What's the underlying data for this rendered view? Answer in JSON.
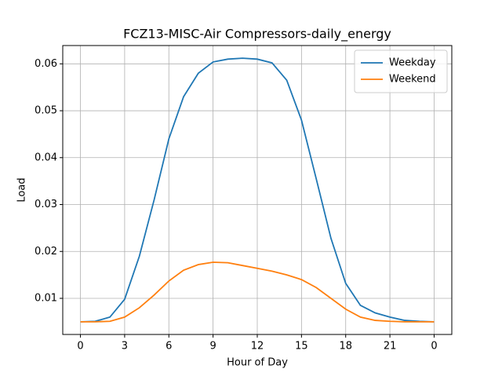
{
  "chart_data": {
    "type": "line",
    "title": "FCZ13-MISC-Air Compressors-daily_energy",
    "xlabel": "Hour of Day",
    "ylabel": "Load",
    "x": [
      0,
      1,
      2,
      3,
      4,
      5,
      6,
      7,
      8,
      9,
      10,
      11,
      12,
      13,
      14,
      15,
      16,
      17,
      18,
      19,
      20,
      21,
      22,
      23,
      24
    ],
    "series": [
      {
        "name": "Weekday",
        "color": "#1f77b4",
        "values": [
          0.005,
          0.0051,
          0.006,
          0.0098,
          0.019,
          0.031,
          0.044,
          0.053,
          0.058,
          0.0604,
          0.061,
          0.0612,
          0.061,
          0.0602,
          0.0565,
          0.048,
          0.0355,
          0.0228,
          0.0132,
          0.0085,
          0.0069,
          0.006,
          0.0053,
          0.0051,
          0.005
        ]
      },
      {
        "name": "Weekend",
        "color": "#ff7f0e",
        "values": [
          0.005,
          0.005,
          0.0051,
          0.006,
          0.008,
          0.0107,
          0.0137,
          0.016,
          0.0172,
          0.0177,
          0.0176,
          0.017,
          0.0164,
          0.0158,
          0.015,
          0.014,
          0.0123,
          0.01,
          0.0077,
          0.006,
          0.0053,
          0.0051,
          0.005,
          0.005,
          0.005
        ]
      }
    ],
    "xlim": [
      -1.2,
      25.2
    ],
    "ylim": [
      0.0023,
      0.0639
    ],
    "xticks": [
      0,
      3,
      6,
      9,
      12,
      15,
      18,
      21,
      {
        "value": 24,
        "label": "0"
      }
    ],
    "yticks": [
      0.01,
      0.02,
      0.03,
      0.04,
      0.05,
      0.06
    ],
    "grid": true,
    "legend": "upper right"
  }
}
